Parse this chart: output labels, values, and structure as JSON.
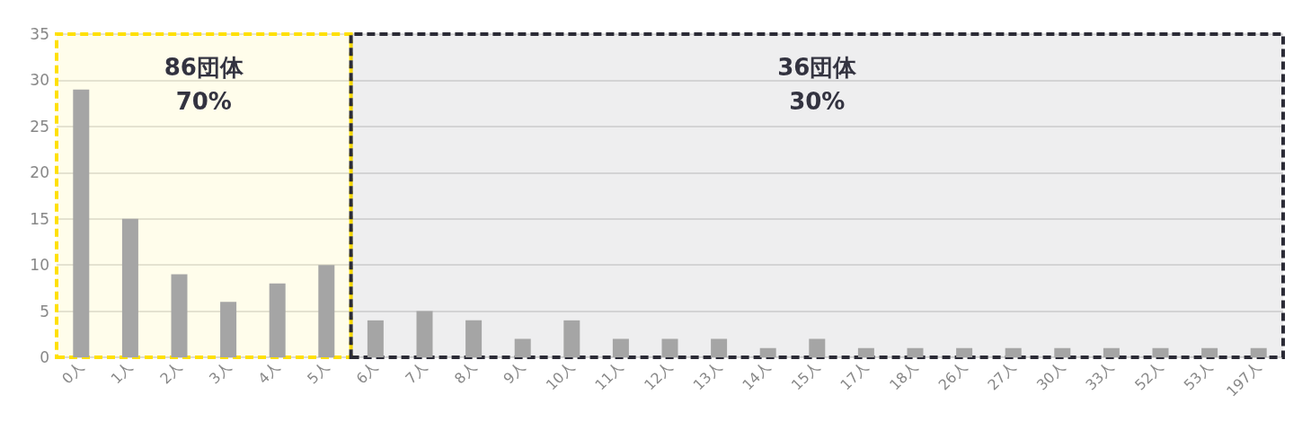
{
  "chart_data": {
    "type": "bar",
    "categories": [
      "0人",
      "1人",
      "2人",
      "3人",
      "4人",
      "5人",
      "6人",
      "7人",
      "8人",
      "9人",
      "10人",
      "11人",
      "12人",
      "13人",
      "14人",
      "15人",
      "17人",
      "18人",
      "26人",
      "27人",
      "30人",
      "33人",
      "52人",
      "53人",
      "197人"
    ],
    "values": [
      29,
      15,
      9,
      6,
      8,
      10,
      4,
      5,
      4,
      2,
      4,
      2,
      2,
      2,
      1,
      2,
      1,
      1,
      1,
      1,
      1,
      1,
      1,
      1,
      1
    ],
    "color": "#a5a5a5",
    "ylim": [
      0,
      35
    ],
    "yticks": [
      0,
      5,
      10,
      15,
      20,
      25,
      30,
      35
    ],
    "grid": "y",
    "bands": [
      {
        "axis": "x",
        "from": "0人",
        "to": "5人",
        "label": "86団体\n70%",
        "color": "#ffe000"
      },
      {
        "axis": "x",
        "from": "6人",
        "to": "197人",
        "label": "36団体\n30%",
        "color": "#2b2b36"
      }
    ]
  }
}
